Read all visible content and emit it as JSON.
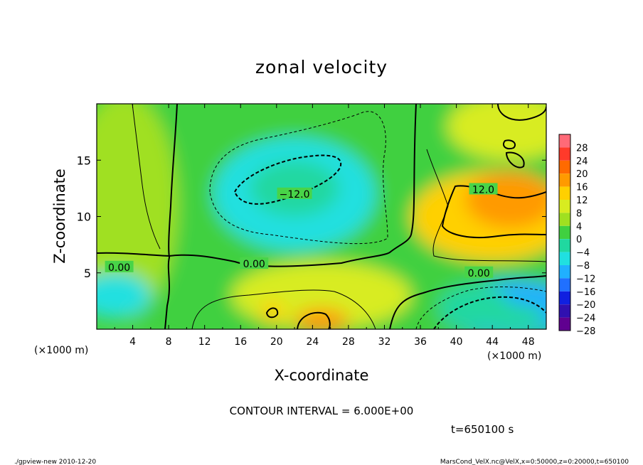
{
  "chart_data": {
    "type": "heatmap",
    "title": "zonal velocity",
    "xlabel": "X-coordinate",
    "ylabel": "Z-coordinate",
    "x_unit_left": "(×1000 m)",
    "x_unit_right": "(×1000 m)",
    "xlim": [
      0,
      50
    ],
    "ylim": [
      0,
      20
    ],
    "x_ticks": [
      "4",
      "8",
      "12",
      "16",
      "20",
      "24",
      "28",
      "32",
      "36",
      "40",
      "44",
      "48"
    ],
    "x_tick_values": [
      4,
      8,
      12,
      16,
      20,
      24,
      28,
      32,
      36,
      40,
      44,
      48
    ],
    "y_ticks": [
      "5",
      "10",
      "15"
    ],
    "y_tick_values": [
      5,
      10,
      15
    ],
    "colorbar": {
      "levels": [
        28,
        24,
        20,
        16,
        12,
        8,
        4,
        0,
        -4,
        -8,
        -12,
        -16,
        -20,
        -24,
        -28
      ],
      "labels": [
        "28",
        "24",
        "20",
        "16",
        "12",
        "8",
        "4",
        "0",
        "−4",
        "−8",
        "−12",
        "−16",
        "−20",
        "−24",
        "−28"
      ],
      "colors": [
        "#ff6a78",
        "#ff3a2a",
        "#ff6a00",
        "#ff9a00",
        "#ffd000",
        "#d8ec20",
        "#a0e020",
        "#40d040",
        "#20d8a0",
        "#20e0e0",
        "#20b0ff",
        "#2070ff",
        "#1020e0",
        "#3010b0",
        "#600090"
      ]
    },
    "contour_labels": [
      {
        "text": "−12.0",
        "x": 22,
        "y": 12.0
      },
      {
        "text": "12.0",
        "x": 43,
        "y": 12.4
      },
      {
        "text": "0.00",
        "x": 2.5,
        "y": 5.5
      },
      {
        "text": "0.00",
        "x": 17.5,
        "y": 5.8
      },
      {
        "text": "0.00",
        "x": 42.5,
        "y": 5.0
      }
    ],
    "annotations": {
      "contour_interval": "CONTOUR INTERVAL = 6.000E+00",
      "time": "t=650100 s",
      "footer_left": "./gpview-new   2010-12-20",
      "footer_right": "MarsCond_VelX.nc@VelX,x=0:50000,z=0:20000,t=650100"
    },
    "blobs": [
      {
        "x": 25,
        "y": 10,
        "rx": 30,
        "ry": 13,
        "v": -2
      },
      {
        "x": 3,
        "y": 11,
        "rx": 6,
        "ry": 10,
        "v": 4
      },
      {
        "x": 44,
        "y": 10,
        "rx": 9,
        "ry": 4,
        "v": 11
      },
      {
        "x": 46,
        "y": 11.5,
        "rx": 5,
        "ry": 2.5,
        "v": 15
      },
      {
        "x": 46,
        "y": 18,
        "rx": 7,
        "ry": 3,
        "v": 8
      },
      {
        "x": 25,
        "y": 3,
        "rx": 10,
        "ry": 3,
        "v": 7
      },
      {
        "x": 25,
        "y": 0.8,
        "rx": 3,
        "ry": 1,
        "v": 14
      },
      {
        "x": 19.5,
        "y": 1.5,
        "rx": 1.3,
        "ry": 1,
        "v": 12
      },
      {
        "x": 22,
        "y": 12,
        "rx": 9,
        "ry": 5,
        "v": -8
      },
      {
        "x": 22,
        "y": 12.5,
        "rx": 5,
        "ry": 2.5,
        "v": -6
      },
      {
        "x": 46,
        "y": 1.8,
        "rx": 8,
        "ry": 2.5,
        "v": -12
      },
      {
        "x": 46,
        "y": 1.0,
        "rx": 4,
        "ry": 1.2,
        "v": -6
      },
      {
        "x": 2,
        "y": 3,
        "rx": 4,
        "ry": 2,
        "v": -7
      },
      {
        "x": 42,
        "y": 2,
        "rx": 4,
        "ry": 2,
        "v": -5
      }
    ]
  }
}
